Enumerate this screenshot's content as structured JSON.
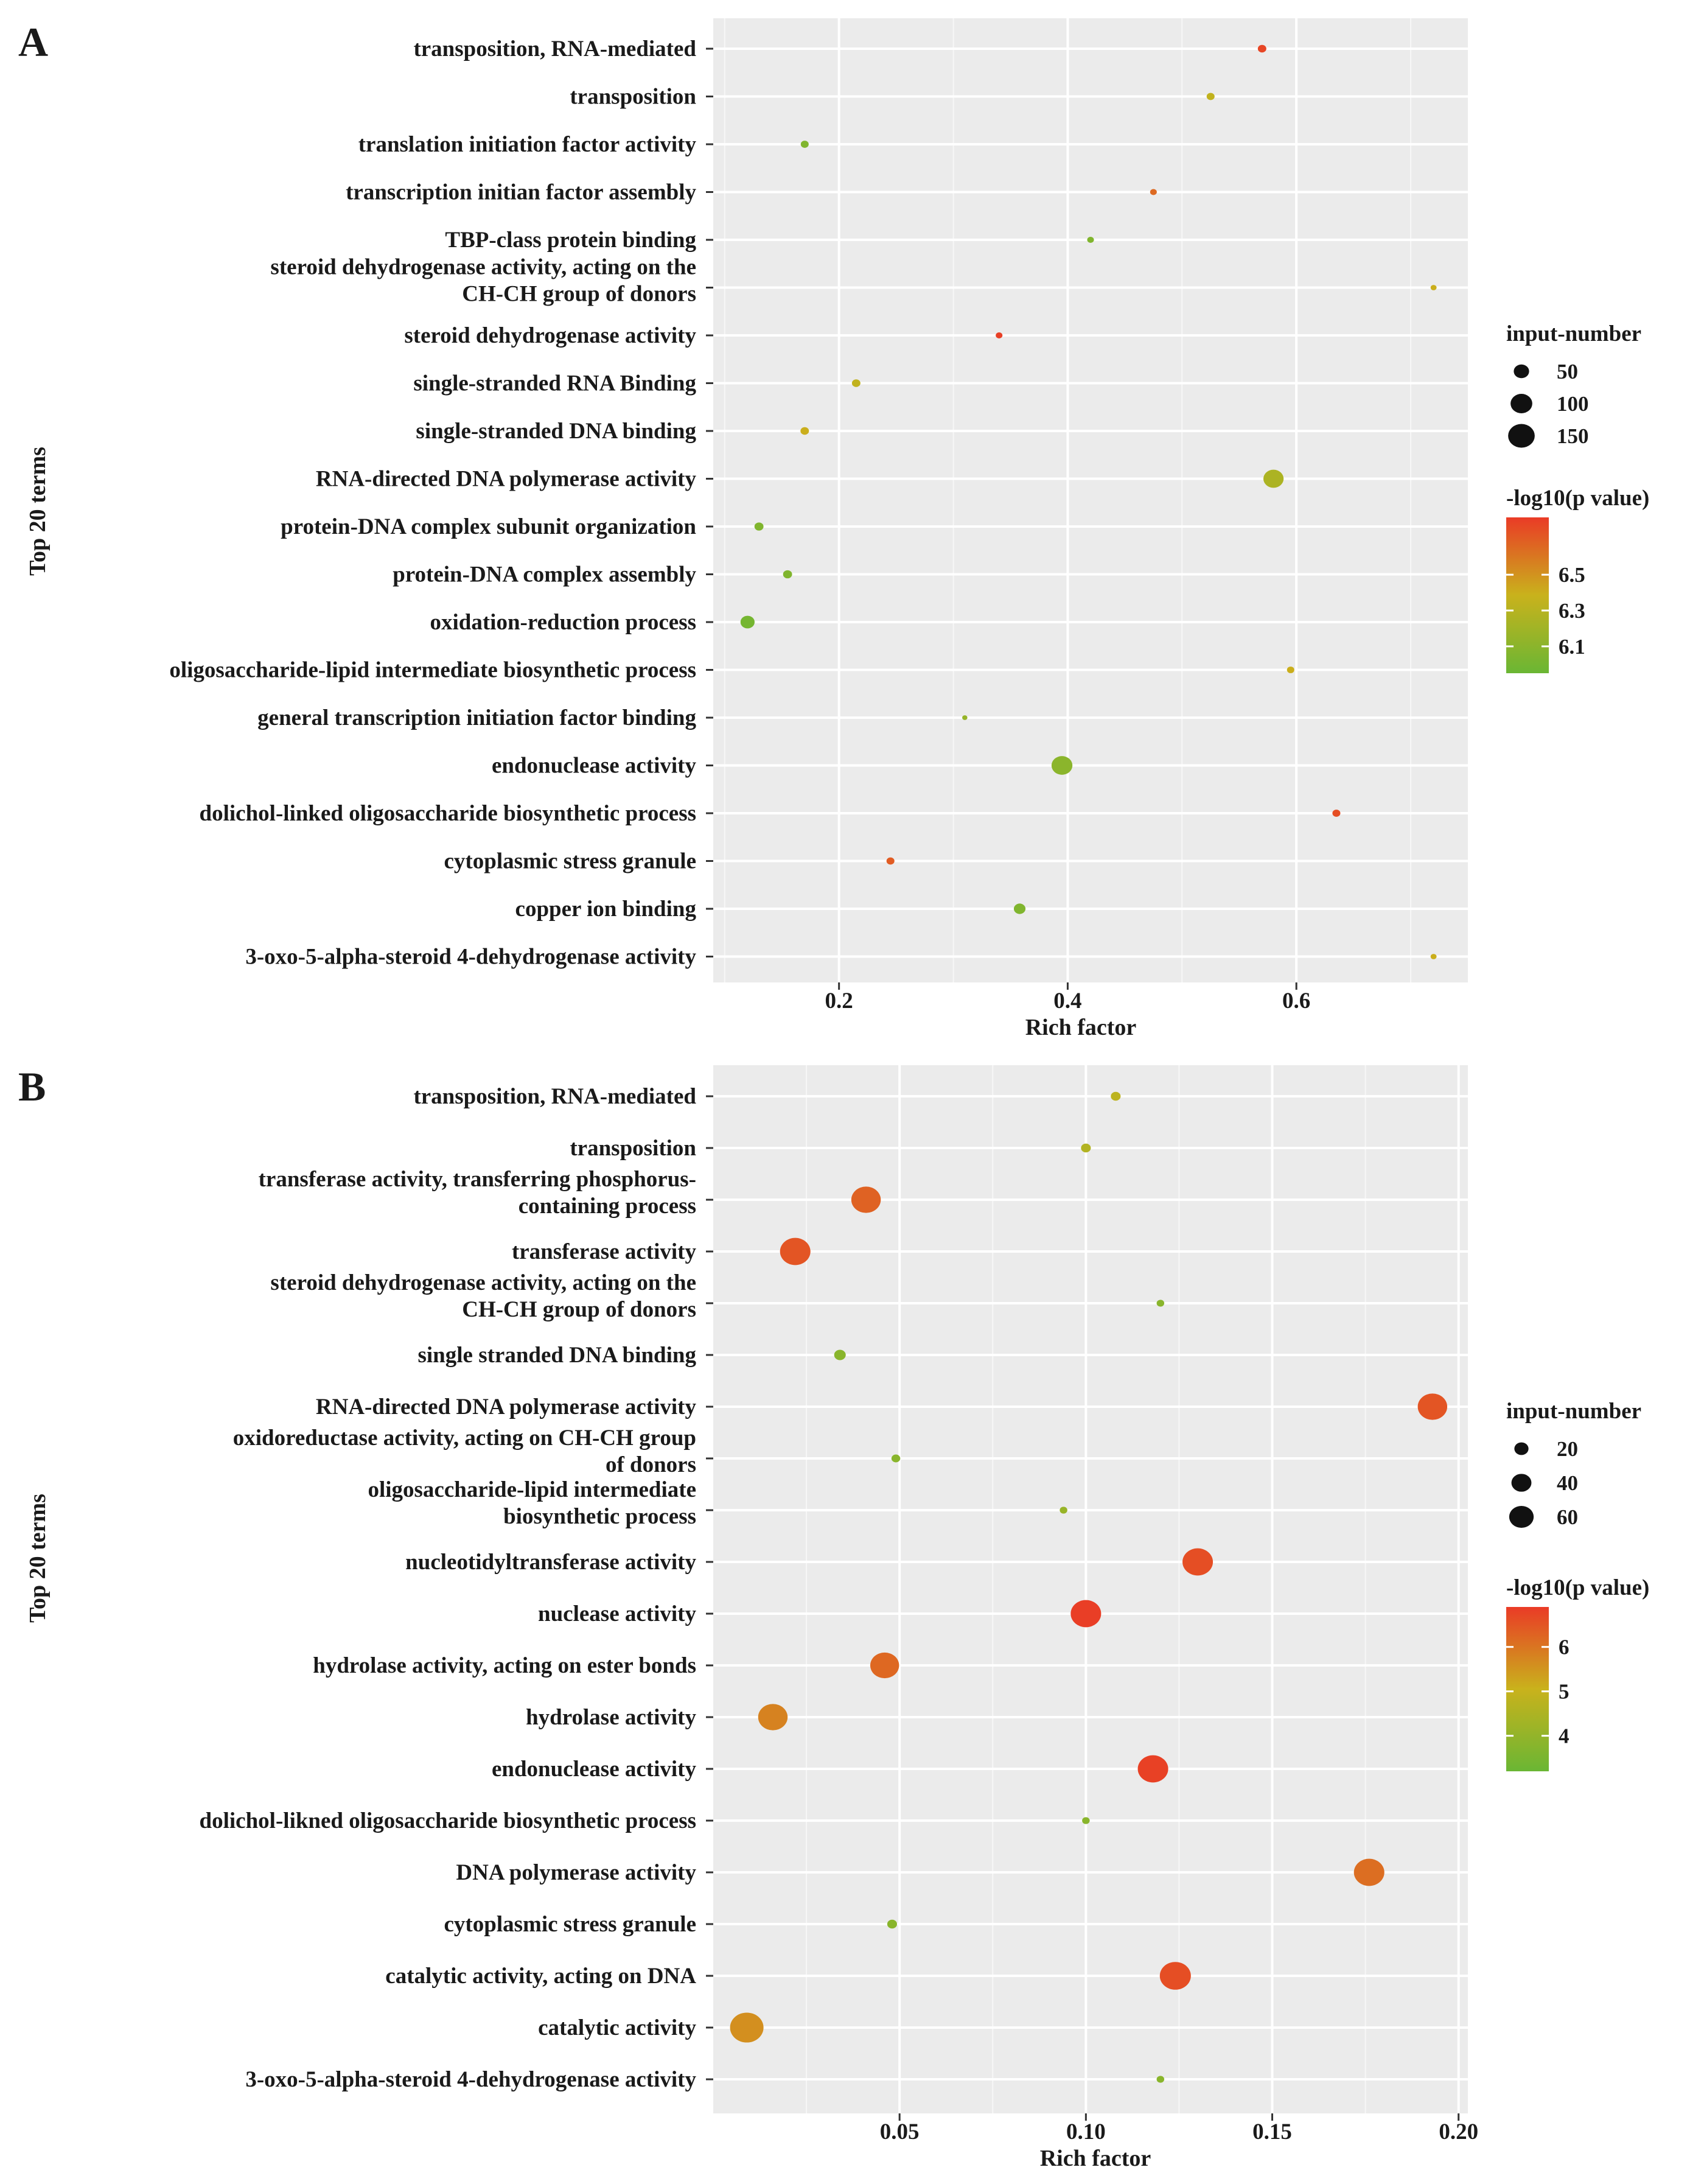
{
  "chart_data": [
    {
      "panel": "A",
      "type": "scatter",
      "xlabel": "Rich factor",
      "ylabel": "Top 20 terms",
      "xlim": [
        0.09,
        0.75
      ],
      "xticks": [
        0.2,
        0.4,
        0.6
      ],
      "xtick_labels": [
        "0.2",
        "0.4",
        "0.6"
      ],
      "size_legend": {
        "title": "input-number",
        "values": [
          50,
          100,
          150
        ],
        "labels": [
          "50",
          "100",
          "150"
        ],
        "max": 160
      },
      "color_legend": {
        "title": "-log10(p value)",
        "min": 5.95,
        "max": 6.82,
        "ticks": [
          6.1,
          6.3,
          6.5
        ],
        "labels": [
          "6.1",
          "6.3",
          "6.5"
        ]
      },
      "colors": {
        "low": "#6ab634",
        "mid": "#c9b21c",
        "high": "#ea3b26"
      },
      "terms": [
        {
          "label": [
            "transposition, RNA-mediated"
          ],
          "x": 0.57,
          "size": 8,
          "p": 6.78
        },
        {
          "label": [
            "transposition"
          ],
          "x": 0.525,
          "size": 7,
          "p": 6.35
        },
        {
          "label": [
            "translation initiation factor activity"
          ],
          "x": 0.17,
          "size": 7,
          "p": 6.05
        },
        {
          "label": [
            "transcription initian factor assembly"
          ],
          "x": 0.475,
          "size": 5,
          "p": 6.65
        },
        {
          "label": [
            "TBP-class protein binding"
          ],
          "x": 0.42,
          "size": 5,
          "p": 6.05
        },
        {
          "label": [
            "steroid dehydrogenase activity, acting on the",
            "CH-CH group of donors"
          ],
          "x": 0.72,
          "size": 4,
          "p": 6.4
        },
        {
          "label": [
            "steroid dehydrogenase activity"
          ],
          "x": 0.34,
          "size": 5,
          "p": 6.8
        },
        {
          "label": [
            "single-stranded RNA Binding"
          ],
          "x": 0.215,
          "size": 8,
          "p": 6.35
        },
        {
          "label": [
            "single-stranded DNA binding"
          ],
          "x": 0.17,
          "size": 8,
          "p": 6.4
        },
        {
          "label": [
            "RNA-directed DNA polymerase activity"
          ],
          "x": 0.58,
          "size": 45,
          "p": 6.25
        },
        {
          "label": [
            "protein-DNA complex subunit organization"
          ],
          "x": 0.13,
          "size": 9,
          "p": 6.05
        },
        {
          "label": [
            "protein-DNA complex assembly"
          ],
          "x": 0.155,
          "size": 9,
          "p": 6.05
        },
        {
          "label": [
            "oxidation-reduction process"
          ],
          "x": 0.12,
          "size": 22,
          "p": 6.0
        },
        {
          "label": [
            "oligosaccharide-lipid intermediate biosynthetic process"
          ],
          "x": 0.595,
          "size": 6,
          "p": 6.4
        },
        {
          "label": [
            "general transcription initiation factor binding"
          ],
          "x": 0.31,
          "size": 3,
          "p": 6.15
        },
        {
          "label": [
            "endonuclease activity"
          ],
          "x": 0.395,
          "size": 48,
          "p": 6.1
        },
        {
          "label": [
            "dolichol-linked oligosaccharide biosynthetic process"
          ],
          "x": 0.635,
          "size": 7,
          "p": 6.75
        },
        {
          "label": [
            "cytoplasmic stress granule"
          ],
          "x": 0.245,
          "size": 7,
          "p": 6.7
        },
        {
          "label": [
            "copper ion binding"
          ],
          "x": 0.358,
          "size": 15,
          "p": 6.05
        },
        {
          "label": [
            "3-oxo-5-alpha-steroid 4-dehydrogenase activity"
          ],
          "x": 0.72,
          "size": 4,
          "p": 6.4
        }
      ]
    },
    {
      "panel": "B",
      "type": "scatter",
      "xlabel": "Rich factor",
      "ylabel": "Top 20 terms",
      "xlim": [
        0.0,
        0.2025
      ],
      "xticks": [
        0.05,
        0.1,
        0.15,
        0.2
      ],
      "xtick_labels": [
        "0.05",
        "0.10",
        "0.15",
        "0.20"
      ],
      "size_legend": {
        "title": "input-number",
        "values": [
          20,
          40,
          60
        ],
        "labels": [
          "20",
          "40",
          "60"
        ],
        "max": 65
      },
      "color_legend": {
        "title": "-log10(p value)",
        "min": 3.2,
        "max": 6.9,
        "ticks": [
          4,
          5,
          6
        ],
        "labels": [
          "4",
          "5",
          "6"
        ]
      },
      "colors": {
        "low": "#6ab634",
        "mid": "#c9b21c",
        "high": "#ea3b26"
      },
      "terms": [
        {
          "label": [
            "transposition, RNA-mediated"
          ],
          "x": 0.108,
          "size": 5,
          "p": 4.8
        },
        {
          "label": [
            "transposition"
          ],
          "x": 0.1,
          "size": 5,
          "p": 4.6
        },
        {
          "label": [
            "transferase activity, transferring phosphorus-",
            "containing process"
          ],
          "x": 0.041,
          "size": 45,
          "p": 6.3
        },
        {
          "label": [
            "transferase activity"
          ],
          "x": 0.022,
          "size": 48,
          "p": 6.5
        },
        {
          "label": [
            "steroid dehydrogenase activity, acting on the",
            "CH-CH group of donors"
          ],
          "x": 0.12,
          "size": 3,
          "p": 3.8
        },
        {
          "label": [
            "single stranded DNA binding"
          ],
          "x": 0.034,
          "size": 7,
          "p": 3.8
        },
        {
          "label": [
            "RNA-directed DNA polymerase activity"
          ],
          "x": 0.193,
          "size": 45,
          "p": 6.5
        },
        {
          "label": [
            "oxidoreductase activity, acting on CH-CH group",
            "of donors"
          ],
          "x": 0.049,
          "size": 4,
          "p": 3.8
        },
        {
          "label": [
            "oligosaccharide-lipid intermediate",
            "biosynthetic process"
          ],
          "x": 0.094,
          "size": 3,
          "p": 4.1
        },
        {
          "label": [
            "nucleotidyltransferase activity"
          ],
          "x": 0.13,
          "size": 48,
          "p": 6.6
        },
        {
          "label": [
            "nuclease activity"
          ],
          "x": 0.1,
          "size": 48,
          "p": 6.85
        },
        {
          "label": [
            "hydrolase activity, acting on ester bonds"
          ],
          "x": 0.046,
          "size": 43,
          "p": 6.2
        },
        {
          "label": [
            "hydrolase activity"
          ],
          "x": 0.016,
          "size": 45,
          "p": 5.8
        },
        {
          "label": [
            "endonuclease activity"
          ],
          "x": 0.118,
          "size": 48,
          "p": 6.8
        },
        {
          "label": [
            "dolichol-likned oligosaccharide biosynthetic process"
          ],
          "x": 0.1,
          "size": 3,
          "p": 3.8
        },
        {
          "label": [
            "DNA polymerase activity"
          ],
          "x": 0.176,
          "size": 48,
          "p": 6.1
        },
        {
          "label": [
            "cytoplasmic stress granule"
          ],
          "x": 0.048,
          "size": 5,
          "p": 3.8
        },
        {
          "label": [
            "catalytic activity, acting on DNA"
          ],
          "x": 0.124,
          "size": 50,
          "p": 6.6
        },
        {
          "label": [
            "catalytic activity"
          ],
          "x": 0.009,
          "size": 58,
          "p": 5.6
        },
        {
          "label": [
            "3-oxo-5-alpha-steroid 4-dehydrogenase activity"
          ],
          "x": 0.12,
          "size": 3,
          "p": 3.8
        }
      ]
    }
  ]
}
